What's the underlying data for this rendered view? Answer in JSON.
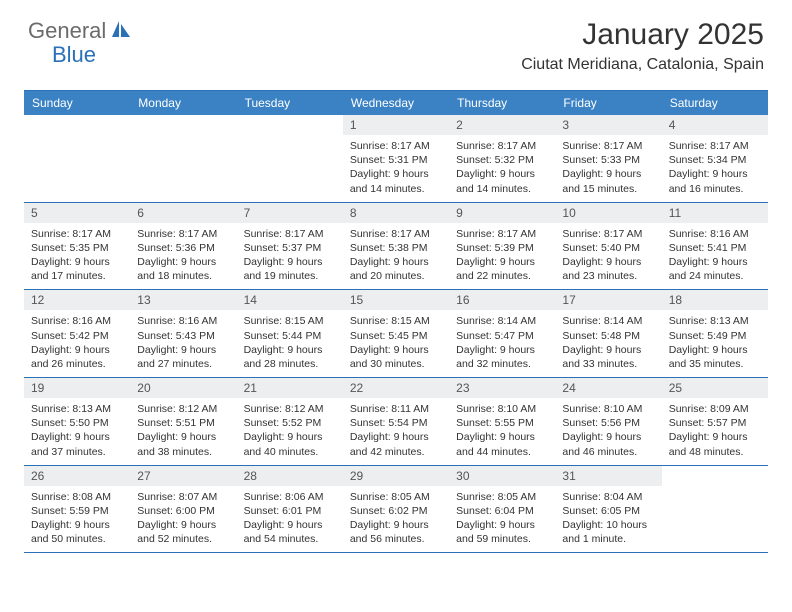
{
  "logo": {
    "word1": "General",
    "word2": "Blue",
    "gray": "#6b6b6b",
    "blue": "#2a71b8"
  },
  "title": {
    "month": "January 2025",
    "location": "Ciutat Meridiana, Catalonia, Spain"
  },
  "colors": {
    "header_bg": "#3b82c4",
    "header_text": "#ffffff",
    "border": "#2a71b8",
    "daynum_bg": "#eceef0",
    "daynum_text": "#555555",
    "body_text": "#333333"
  },
  "day_names": [
    "Sunday",
    "Monday",
    "Tuesday",
    "Wednesday",
    "Thursday",
    "Friday",
    "Saturday"
  ],
  "weeks": [
    [
      {
        "empty": true
      },
      {
        "empty": true
      },
      {
        "empty": true
      },
      {
        "n": "1",
        "sr": "8:17 AM",
        "ss": "5:31 PM",
        "dl": "9 hours and 14 minutes."
      },
      {
        "n": "2",
        "sr": "8:17 AM",
        "ss": "5:32 PM",
        "dl": "9 hours and 14 minutes."
      },
      {
        "n": "3",
        "sr": "8:17 AM",
        "ss": "5:33 PM",
        "dl": "9 hours and 15 minutes."
      },
      {
        "n": "4",
        "sr": "8:17 AM",
        "ss": "5:34 PM",
        "dl": "9 hours and 16 minutes."
      }
    ],
    [
      {
        "n": "5",
        "sr": "8:17 AM",
        "ss": "5:35 PM",
        "dl": "9 hours and 17 minutes."
      },
      {
        "n": "6",
        "sr": "8:17 AM",
        "ss": "5:36 PM",
        "dl": "9 hours and 18 minutes."
      },
      {
        "n": "7",
        "sr": "8:17 AM",
        "ss": "5:37 PM",
        "dl": "9 hours and 19 minutes."
      },
      {
        "n": "8",
        "sr": "8:17 AM",
        "ss": "5:38 PM",
        "dl": "9 hours and 20 minutes."
      },
      {
        "n": "9",
        "sr": "8:17 AM",
        "ss": "5:39 PM",
        "dl": "9 hours and 22 minutes."
      },
      {
        "n": "10",
        "sr": "8:17 AM",
        "ss": "5:40 PM",
        "dl": "9 hours and 23 minutes."
      },
      {
        "n": "11",
        "sr": "8:16 AM",
        "ss": "5:41 PM",
        "dl": "9 hours and 24 minutes."
      }
    ],
    [
      {
        "n": "12",
        "sr": "8:16 AM",
        "ss": "5:42 PM",
        "dl": "9 hours and 26 minutes."
      },
      {
        "n": "13",
        "sr": "8:16 AM",
        "ss": "5:43 PM",
        "dl": "9 hours and 27 minutes."
      },
      {
        "n": "14",
        "sr": "8:15 AM",
        "ss": "5:44 PM",
        "dl": "9 hours and 28 minutes."
      },
      {
        "n": "15",
        "sr": "8:15 AM",
        "ss": "5:45 PM",
        "dl": "9 hours and 30 minutes."
      },
      {
        "n": "16",
        "sr": "8:14 AM",
        "ss": "5:47 PM",
        "dl": "9 hours and 32 minutes."
      },
      {
        "n": "17",
        "sr": "8:14 AM",
        "ss": "5:48 PM",
        "dl": "9 hours and 33 minutes."
      },
      {
        "n": "18",
        "sr": "8:13 AM",
        "ss": "5:49 PM",
        "dl": "9 hours and 35 minutes."
      }
    ],
    [
      {
        "n": "19",
        "sr": "8:13 AM",
        "ss": "5:50 PM",
        "dl": "9 hours and 37 minutes."
      },
      {
        "n": "20",
        "sr": "8:12 AM",
        "ss": "5:51 PM",
        "dl": "9 hours and 38 minutes."
      },
      {
        "n": "21",
        "sr": "8:12 AM",
        "ss": "5:52 PM",
        "dl": "9 hours and 40 minutes."
      },
      {
        "n": "22",
        "sr": "8:11 AM",
        "ss": "5:54 PM",
        "dl": "9 hours and 42 minutes."
      },
      {
        "n": "23",
        "sr": "8:10 AM",
        "ss": "5:55 PM",
        "dl": "9 hours and 44 minutes."
      },
      {
        "n": "24",
        "sr": "8:10 AM",
        "ss": "5:56 PM",
        "dl": "9 hours and 46 minutes."
      },
      {
        "n": "25",
        "sr": "8:09 AM",
        "ss": "5:57 PM",
        "dl": "9 hours and 48 minutes."
      }
    ],
    [
      {
        "n": "26",
        "sr": "8:08 AM",
        "ss": "5:59 PM",
        "dl": "9 hours and 50 minutes."
      },
      {
        "n": "27",
        "sr": "8:07 AM",
        "ss": "6:00 PM",
        "dl": "9 hours and 52 minutes."
      },
      {
        "n": "28",
        "sr": "8:06 AM",
        "ss": "6:01 PM",
        "dl": "9 hours and 54 minutes."
      },
      {
        "n": "29",
        "sr": "8:05 AM",
        "ss": "6:02 PM",
        "dl": "9 hours and 56 minutes."
      },
      {
        "n": "30",
        "sr": "8:05 AM",
        "ss": "6:04 PM",
        "dl": "9 hours and 59 minutes."
      },
      {
        "n": "31",
        "sr": "8:04 AM",
        "ss": "6:05 PM",
        "dl": "10 hours and 1 minute."
      },
      {
        "empty": true
      }
    ]
  ],
  "labels": {
    "sunrise": "Sunrise:",
    "sunset": "Sunset:",
    "daylight": "Daylight:"
  }
}
